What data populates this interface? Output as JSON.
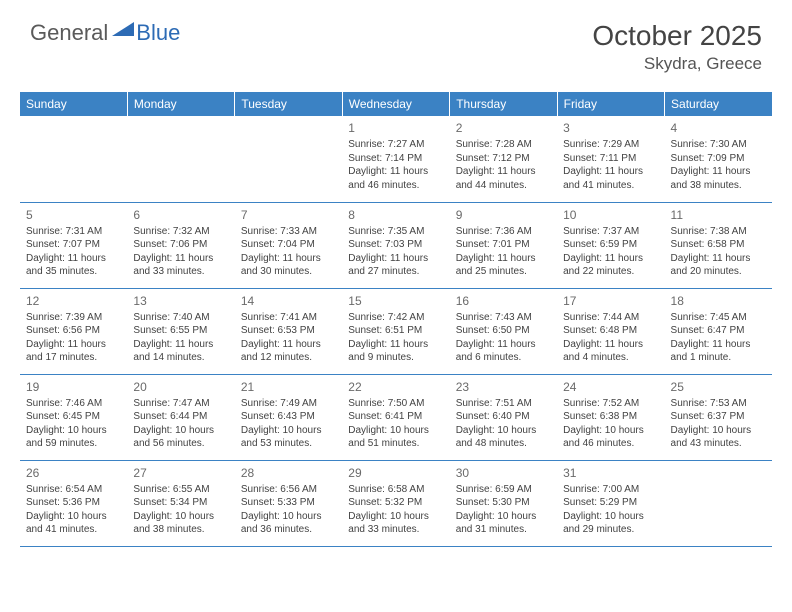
{
  "logo": {
    "word1": "General",
    "word2": "Blue"
  },
  "title": "October 2025",
  "location": "Skydra, Greece",
  "colors": {
    "header_bg": "#3b82c4",
    "header_text": "#ffffff",
    "logo_gray": "#5a5a5a",
    "logo_blue": "#2d6bb5",
    "cell_border": "#3b82c4",
    "text": "#424242"
  },
  "day_headers": [
    "Sunday",
    "Monday",
    "Tuesday",
    "Wednesday",
    "Thursday",
    "Friday",
    "Saturday"
  ],
  "weeks": [
    [
      null,
      null,
      null,
      {
        "n": "1",
        "sr": "7:27 AM",
        "ss": "7:14 PM",
        "dl": "11 hours and 46 minutes."
      },
      {
        "n": "2",
        "sr": "7:28 AM",
        "ss": "7:12 PM",
        "dl": "11 hours and 44 minutes."
      },
      {
        "n": "3",
        "sr": "7:29 AM",
        "ss": "7:11 PM",
        "dl": "11 hours and 41 minutes."
      },
      {
        "n": "4",
        "sr": "7:30 AM",
        "ss": "7:09 PM",
        "dl": "11 hours and 38 minutes."
      }
    ],
    [
      {
        "n": "5",
        "sr": "7:31 AM",
        "ss": "7:07 PM",
        "dl": "11 hours and 35 minutes."
      },
      {
        "n": "6",
        "sr": "7:32 AM",
        "ss": "7:06 PM",
        "dl": "11 hours and 33 minutes."
      },
      {
        "n": "7",
        "sr": "7:33 AM",
        "ss": "7:04 PM",
        "dl": "11 hours and 30 minutes."
      },
      {
        "n": "8",
        "sr": "7:35 AM",
        "ss": "7:03 PM",
        "dl": "11 hours and 27 minutes."
      },
      {
        "n": "9",
        "sr": "7:36 AM",
        "ss": "7:01 PM",
        "dl": "11 hours and 25 minutes."
      },
      {
        "n": "10",
        "sr": "7:37 AM",
        "ss": "6:59 PM",
        "dl": "11 hours and 22 minutes."
      },
      {
        "n": "11",
        "sr": "7:38 AM",
        "ss": "6:58 PM",
        "dl": "11 hours and 20 minutes."
      }
    ],
    [
      {
        "n": "12",
        "sr": "7:39 AM",
        "ss": "6:56 PM",
        "dl": "11 hours and 17 minutes."
      },
      {
        "n": "13",
        "sr": "7:40 AM",
        "ss": "6:55 PM",
        "dl": "11 hours and 14 minutes."
      },
      {
        "n": "14",
        "sr": "7:41 AM",
        "ss": "6:53 PM",
        "dl": "11 hours and 12 minutes."
      },
      {
        "n": "15",
        "sr": "7:42 AM",
        "ss": "6:51 PM",
        "dl": "11 hours and 9 minutes."
      },
      {
        "n": "16",
        "sr": "7:43 AM",
        "ss": "6:50 PM",
        "dl": "11 hours and 6 minutes."
      },
      {
        "n": "17",
        "sr": "7:44 AM",
        "ss": "6:48 PM",
        "dl": "11 hours and 4 minutes."
      },
      {
        "n": "18",
        "sr": "7:45 AM",
        "ss": "6:47 PM",
        "dl": "11 hours and 1 minute."
      }
    ],
    [
      {
        "n": "19",
        "sr": "7:46 AM",
        "ss": "6:45 PM",
        "dl": "10 hours and 59 minutes."
      },
      {
        "n": "20",
        "sr": "7:47 AM",
        "ss": "6:44 PM",
        "dl": "10 hours and 56 minutes."
      },
      {
        "n": "21",
        "sr": "7:49 AM",
        "ss": "6:43 PM",
        "dl": "10 hours and 53 minutes."
      },
      {
        "n": "22",
        "sr": "7:50 AM",
        "ss": "6:41 PM",
        "dl": "10 hours and 51 minutes."
      },
      {
        "n": "23",
        "sr": "7:51 AM",
        "ss": "6:40 PM",
        "dl": "10 hours and 48 minutes."
      },
      {
        "n": "24",
        "sr": "7:52 AM",
        "ss": "6:38 PM",
        "dl": "10 hours and 46 minutes."
      },
      {
        "n": "25",
        "sr": "7:53 AM",
        "ss": "6:37 PM",
        "dl": "10 hours and 43 minutes."
      }
    ],
    [
      {
        "n": "26",
        "sr": "6:54 AM",
        "ss": "5:36 PM",
        "dl": "10 hours and 41 minutes."
      },
      {
        "n": "27",
        "sr": "6:55 AM",
        "ss": "5:34 PM",
        "dl": "10 hours and 38 minutes."
      },
      {
        "n": "28",
        "sr": "6:56 AM",
        "ss": "5:33 PM",
        "dl": "10 hours and 36 minutes."
      },
      {
        "n": "29",
        "sr": "6:58 AM",
        "ss": "5:32 PM",
        "dl": "10 hours and 33 minutes."
      },
      {
        "n": "30",
        "sr": "6:59 AM",
        "ss": "5:30 PM",
        "dl": "10 hours and 31 minutes."
      },
      {
        "n": "31",
        "sr": "7:00 AM",
        "ss": "5:29 PM",
        "dl": "10 hours and 29 minutes."
      },
      null
    ]
  ],
  "labels": {
    "sunrise": "Sunrise: ",
    "sunset": "Sunset: ",
    "daylight": "Daylight: "
  }
}
